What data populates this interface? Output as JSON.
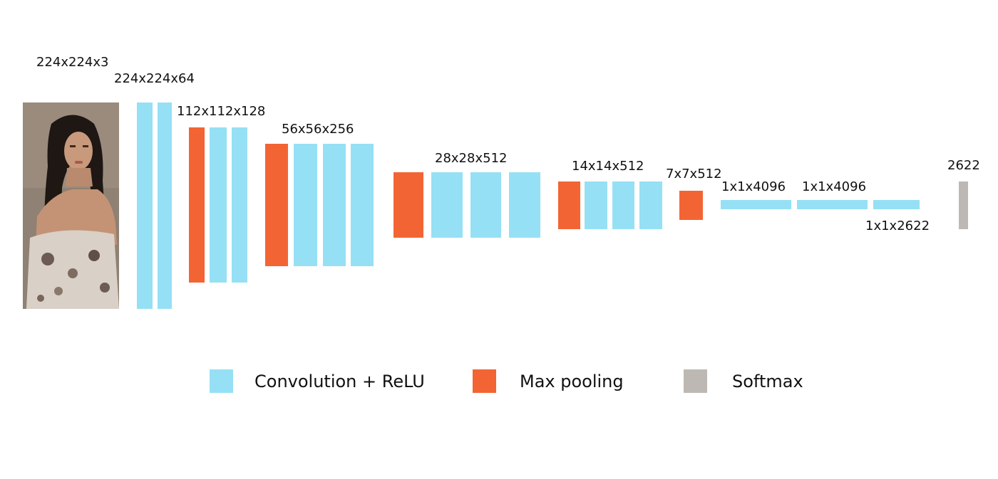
{
  "labels": {
    "input": "224x224x3",
    "block1": "224x224x64",
    "block2": "112x112x128",
    "block3": "56x56x256",
    "block4": "28x28x512",
    "block5": "14x14x512",
    "pool5": "7x7x512",
    "fc6": "1x1x4096",
    "fc7": "1x1x4096",
    "fc8": "1x1x2622",
    "softmax": "2622"
  },
  "legend": {
    "conv_label": "Convolution + ReLU",
    "pool_label": "Max pooling",
    "softmax_label": "Softmax"
  },
  "colors": {
    "convolution": "#96e0f5",
    "max_pooling": "#f36434",
    "softmax": "#bdb8b3"
  },
  "input_image": "photo of a woman (input face image)"
}
